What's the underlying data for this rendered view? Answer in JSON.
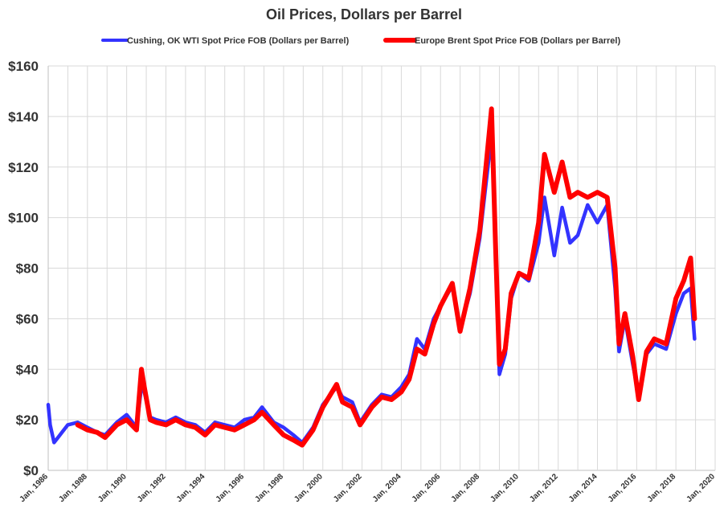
{
  "chart_data": {
    "type": "line",
    "title": "Oil Prices, Dollars per Barrel",
    "xlabel": "",
    "ylabel": "",
    "xlim": [
      1986,
      2020
    ],
    "ylim": [
      0,
      160
    ],
    "y_ticks": [
      0,
      20,
      40,
      60,
      80,
      100,
      120,
      140,
      160
    ],
    "y_tick_labels": [
      "$0",
      "$20",
      "$40",
      "$60",
      "$80",
      "$100",
      "$120",
      "$140",
      "$160"
    ],
    "x_ticks": [
      1986,
      1988,
      1990,
      1992,
      1994,
      1996,
      1998,
      2000,
      2002,
      2004,
      2006,
      2008,
      2010,
      2012,
      2014,
      2016,
      2018,
      2020
    ],
    "x_tick_labels": [
      "Jan, 1986",
      "Jan, 1988",
      "Jan, 1990",
      "Jan, 1992",
      "Jan, 1994",
      "Jan, 1996",
      "Jan, 1998",
      "Jan, 2000",
      "Jan, 2002",
      "Jan, 2004",
      "Jan, 2006",
      "Jan, 2008",
      "Jan, 2010",
      "Jan, 2012",
      "Jan, 2014",
      "Jan, 2016",
      "Jan, 2018",
      "Jan, 2020"
    ],
    "grid": true,
    "legend_position": "top-center",
    "series": [
      {
        "name": "Cushing, OK WTI Spot Price FOB (Dollars per Barrel)",
        "color": "#3333ff",
        "x": [
          1986.0,
          1986.1,
          1986.3,
          1986.5,
          1986.7,
          1987.0,
          1987.5,
          1988.0,
          1988.5,
          1988.9,
          1989.5,
          1990.0,
          1990.5,
          1990.75,
          1990.9,
          1991.2,
          1991.5,
          1992.0,
          1992.5,
          1993.0,
          1993.5,
          1994.0,
          1994.5,
          1995.0,
          1995.5,
          1996.0,
          1996.5,
          1996.9,
          1997.5,
          1998.0,
          1998.5,
          1998.95,
          1999.5,
          2000.0,
          2000.7,
          2001.0,
          2001.5,
          2001.9,
          2002.5,
          2003.0,
          2003.5,
          2004.0,
          2004.4,
          2004.8,
          2005.2,
          2005.65,
          2006.0,
          2006.6,
          2007.0,
          2007.5,
          2008.0,
          2008.5,
          2008.6,
          2008.8,
          2009.0,
          2009.3,
          2009.6,
          2010.0,
          2010.5,
          2011.0,
          2011.3,
          2011.8,
          2012.2,
          2012.6,
          2013.0,
          2013.5,
          2014.0,
          2014.5,
          2014.9,
          2015.1,
          2015.4,
          2015.8,
          2016.1,
          2016.5,
          2016.9,
          2017.5,
          2018.0,
          2018.4,
          2018.75,
          2018.95
        ],
        "y": [
          26,
          18,
          11,
          13,
          15,
          18,
          19,
          17,
          15,
          14,
          19,
          22,
          17,
          33,
          31,
          21,
          20,
          19,
          21,
          19,
          18,
          15,
          19,
          18,
          17,
          20,
          21,
          25,
          19,
          17,
          14,
          11,
          17,
          26,
          33,
          29,
          27,
          19,
          26,
          30,
          29,
          33,
          38,
          52,
          48,
          60,
          65,
          73,
          56,
          70,
          92,
          126,
          138,
          95,
          38,
          46,
          68,
          78,
          75,
          90,
          108,
          85,
          104,
          90,
          93,
          105,
          98,
          105,
          72,
          47,
          60,
          42,
          30,
          46,
          50,
          48,
          62,
          70,
          72,
          52
        ]
      },
      {
        "name": "Europe Brent Spot Price FOB (Dollars per Barrel)",
        "color": "#ff0000",
        "x": [
          1987.5,
          1988.0,
          1988.5,
          1988.9,
          1989.5,
          1990.0,
          1990.5,
          1990.75,
          1990.9,
          1991.2,
          1991.5,
          1992.0,
          1992.5,
          1993.0,
          1993.5,
          1994.0,
          1994.5,
          1995.0,
          1995.5,
          1996.0,
          1996.5,
          1996.9,
          1997.5,
          1998.0,
          1998.5,
          1998.95,
          1999.5,
          2000.0,
          2000.7,
          2001.0,
          2001.5,
          2001.9,
          2002.5,
          2003.0,
          2003.5,
          2004.0,
          2004.4,
          2004.8,
          2005.2,
          2005.65,
          2006.0,
          2006.6,
          2007.0,
          2007.5,
          2008.0,
          2008.5,
          2008.6,
          2008.8,
          2009.0,
          2009.3,
          2009.6,
          2010.0,
          2010.5,
          2011.0,
          2011.3,
          2011.8,
          2012.2,
          2012.6,
          2013.0,
          2013.5,
          2014.0,
          2014.5,
          2014.9,
          2015.1,
          2015.4,
          2015.8,
          2016.1,
          2016.5,
          2016.9,
          2017.5,
          2018.0,
          2018.4,
          2018.75,
          2018.95
        ],
        "y": [
          18,
          16,
          15,
          13,
          18,
          20,
          16,
          40,
          33,
          20,
          19,
          18,
          20,
          18,
          17,
          14,
          18,
          17,
          16,
          18,
          20,
          23,
          18,
          14,
          12,
          10,
          16,
          25,
          34,
          27,
          25,
          18,
          25,
          29,
          28,
          31,
          36,
          48,
          46,
          58,
          65,
          74,
          55,
          72,
          95,
          135,
          143,
          90,
          42,
          48,
          70,
          78,
          76,
          98,
          125,
          110,
          122,
          108,
          110,
          108,
          110,
          108,
          80,
          50,
          62,
          45,
          28,
          47,
          52,
          50,
          68,
          75,
          84,
          60
        ]
      }
    ]
  }
}
